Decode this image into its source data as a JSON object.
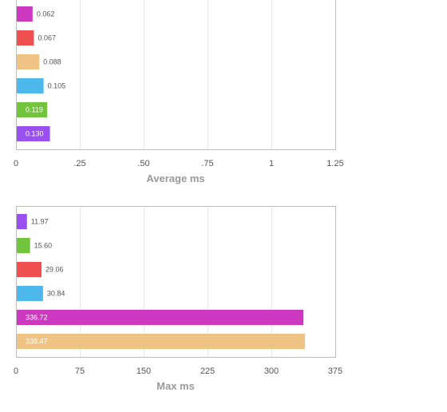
{
  "chart_data": [
    {
      "type": "bar",
      "orientation": "horizontal",
      "xlabel": "Average ms",
      "xlim": [
        0,
        1.25
      ],
      "xticks": [
        0,
        0.25,
        0.5,
        0.75,
        1,
        1.25
      ],
      "tick_labels": [
        "0",
        ".25",
        ".50",
        ".75",
        "1",
        "1.25"
      ],
      "grid": true,
      "bars": [
        {
          "value": 0.062,
          "label": "0.062",
          "color": "#cc38c0",
          "label_inside": false
        },
        {
          "value": 0.067,
          "label": "0.067",
          "color": "#ef4f4f",
          "label_inside": false
        },
        {
          "value": 0.088,
          "label": "0.088",
          "color": "#eec383",
          "label_inside": false
        },
        {
          "value": 0.105,
          "label": "0.105",
          "color": "#4db8ec",
          "label_inside": false
        },
        {
          "value": 0.119,
          "label": "0.119",
          "color": "#72c43c",
          "label_inside": true
        },
        {
          "value": 0.13,
          "label": "0.130",
          "color": "#9a4ff0",
          "label_inside": true
        }
      ]
    },
    {
      "type": "bar",
      "orientation": "horizontal",
      "xlabel": "Max ms",
      "xlim": [
        0,
        375
      ],
      "xticks": [
        0,
        75,
        150,
        225,
        300,
        375
      ],
      "tick_labels": [
        "0",
        "75",
        "150",
        "225",
        "300",
        "375"
      ],
      "grid": true,
      "bars": [
        {
          "value": 11.97,
          "label": "11.97",
          "color": "#9a4ff0",
          "label_inside": false
        },
        {
          "value": 15.6,
          "label": "15.60",
          "color": "#72c43c",
          "label_inside": false
        },
        {
          "value": 29.06,
          "label": "29.06",
          "color": "#ef4f4f",
          "label_inside": false
        },
        {
          "value": 30.84,
          "label": "30.84",
          "color": "#4db8ec",
          "label_inside": false
        },
        {
          "value": 336.72,
          "label": "336.72",
          "color": "#cc38c0",
          "label_inside": true
        },
        {
          "value": 338.47,
          "label": "338.47",
          "color": "#eec383",
          "label_inside": true
        }
      ]
    }
  ]
}
